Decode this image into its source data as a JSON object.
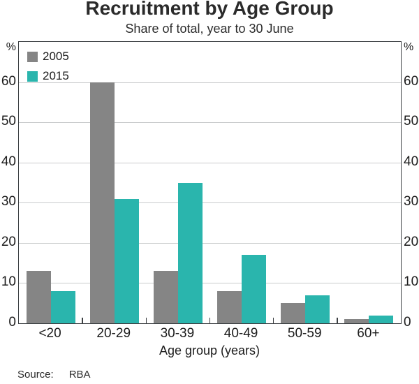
{
  "title": "Recruitment by Age Group",
  "subtitle": "Share of total, year to 30 June",
  "footer": {
    "source_label": "Source:",
    "source_value": "RBA"
  },
  "chart_data": {
    "type": "bar",
    "title": "Recruitment by Age Group",
    "subtitle": "Share of total, year to 30 June",
    "categories": [
      "<20",
      "20-29",
      "30-39",
      "40-49",
      "50-59",
      "60+"
    ],
    "series": [
      {
        "name": "2005",
        "color": "#858585",
        "values": [
          13,
          60,
          13,
          8,
          5,
          1
        ]
      },
      {
        "name": "2015",
        "color": "#2ab5ad",
        "values": [
          8,
          31,
          35,
          17,
          7,
          2
        ]
      }
    ],
    "xlabel": "Age group (years)",
    "ylabel": "",
    "y_unit": "%",
    "ylim": [
      0,
      70
    ],
    "yticks": [
      0,
      10,
      20,
      30,
      40,
      50,
      60
    ],
    "grid": true,
    "legend_position": "top-left",
    "y_axis_sides": [
      "left",
      "right"
    ]
  }
}
